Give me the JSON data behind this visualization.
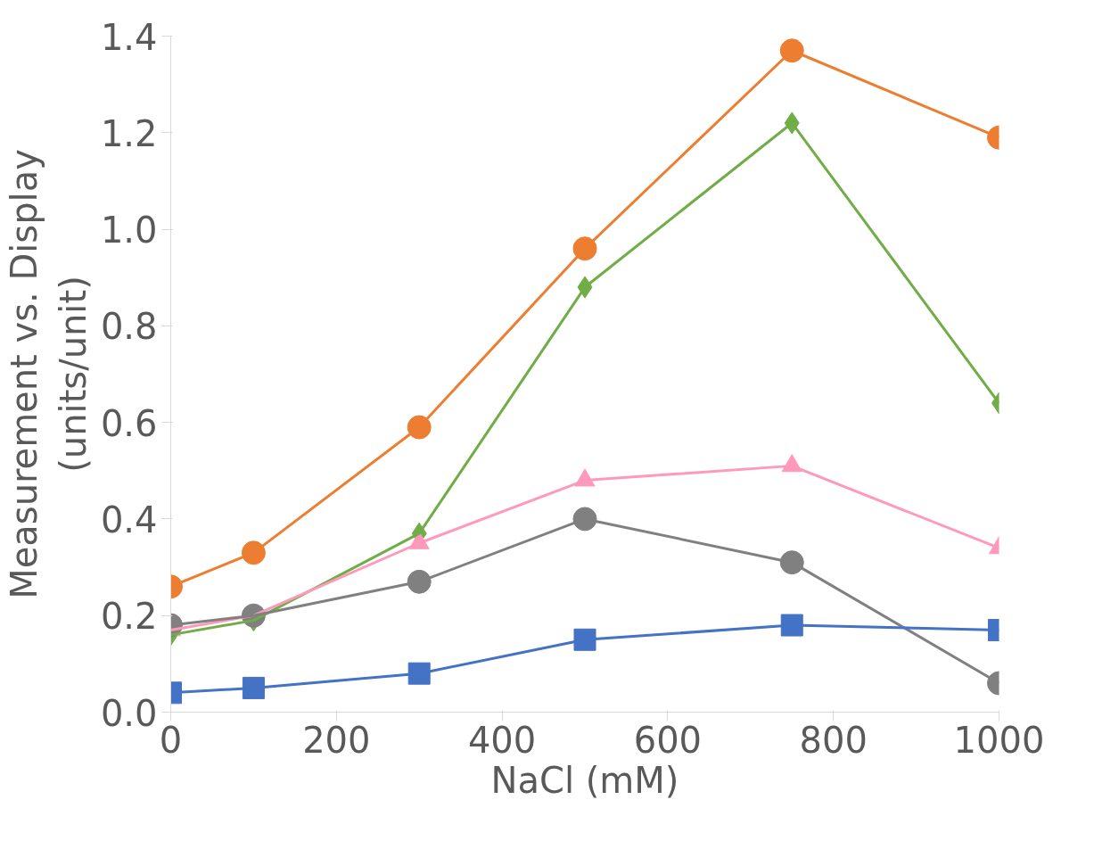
{
  "chart_data": {
    "type": "line",
    "xlabel": "NaCl (mM)",
    "ylabel": "Measurement vs. Display\n(units/unit)",
    "x": [
      0,
      100,
      300,
      500,
      750,
      1000
    ],
    "series": [
      {
        "color": "#ed7d31",
        "marker": "circle",
        "values": [
          0.26,
          0.33,
          0.59,
          0.96,
          1.37,
          1.19
        ]
      },
      {
        "color": "#70ad47",
        "marker": "diamond",
        "values": [
          0.16,
          0.19,
          0.37,
          0.88,
          1.22,
          0.64
        ]
      },
      {
        "color": "#ff99bb",
        "marker": "triangle",
        "values": [
          0.17,
          0.2,
          0.35,
          0.48,
          0.51,
          0.34
        ]
      },
      {
        "color": "#808080",
        "marker": "circle",
        "values": [
          0.18,
          0.2,
          0.27,
          0.4,
          0.31,
          0.06
        ]
      },
      {
        "color": "#4472c4",
        "marker": "square",
        "values": [
          0.04,
          0.05,
          0.08,
          0.15,
          0.18,
          0.17
        ]
      }
    ],
    "xlim": [
      0,
      1000
    ],
    "ylim": [
      0,
      1.4
    ],
    "xticks": [
      0,
      200,
      400,
      600,
      800,
      1000
    ],
    "yticks": [
      {
        "value": 0,
        "label": "0.0"
      },
      {
        "value": 0.2,
        "label": "0.2"
      },
      {
        "value": 0.4,
        "label": "0.4"
      },
      {
        "value": 0.6,
        "label": "0.6"
      },
      {
        "value": 0.8,
        "label": "0.8"
      },
      {
        "value": 1.0,
        "label": "1.0"
      },
      {
        "value": 1.2,
        "label": "1.2"
      },
      {
        "value": 1.4,
        "label": "1.4"
      }
    ],
    "grid": false,
    "line_style": "solid"
  }
}
